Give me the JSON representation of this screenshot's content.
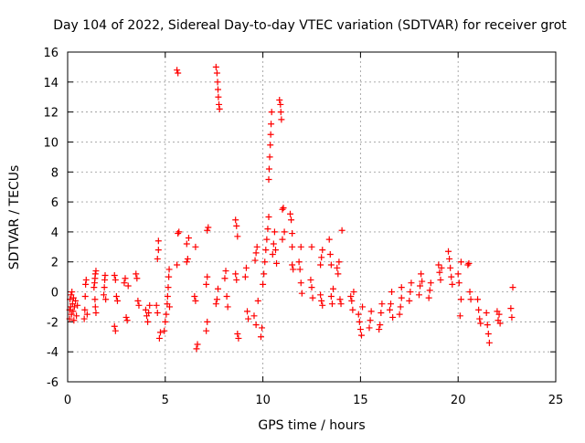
{
  "chart_data": {
    "type": "scatter",
    "title": "Day 104 of 2022, Sidereal Day-to-day VTEC variation (SDTVAR) for receiver grot",
    "xlabel": "GPS time / hours",
    "ylabel": "SDTVAR / TECUs",
    "xlim": [
      0,
      25
    ],
    "ylim": [
      -6,
      16
    ],
    "xticks": [
      0,
      5,
      10,
      15,
      20,
      25
    ],
    "yticks": [
      -6,
      -4,
      -2,
      0,
      2,
      4,
      6,
      8,
      10,
      12,
      14,
      16
    ],
    "xtick_labels": [
      "0",
      "5",
      "10",
      "15",
      "20",
      "25"
    ],
    "ytick_labels": [
      "-6",
      "-4",
      "-2",
      "0",
      "2",
      "4",
      "6",
      "8",
      "10",
      "12",
      "14",
      "16"
    ],
    "grid": true,
    "marker": "plus",
    "color": "#ff0000",
    "series": [
      {
        "name": "SDTVAR",
        "points": [
          [
            0.1,
            -1.8
          ],
          [
            0.1,
            -1.2
          ],
          [
            0.12,
            -0.5
          ],
          [
            0.15,
            -1.0
          ],
          [
            0.18,
            -0.2
          ],
          [
            0.2,
            -1.5
          ],
          [
            0.22,
            0.0
          ],
          [
            0.25,
            -0.8
          ],
          [
            0.28,
            -1.3
          ],
          [
            0.3,
            -0.4
          ],
          [
            0.32,
            -1.9
          ],
          [
            0.35,
            -1.0
          ],
          [
            0.4,
            -0.6
          ],
          [
            0.45,
            -1.6
          ],
          [
            0.5,
            -0.9
          ],
          [
            0.85,
            -1.8
          ],
          [
            0.88,
            -1.2
          ],
          [
            0.9,
            -0.3
          ],
          [
            0.92,
            0.5
          ],
          [
            0.95,
            0.8
          ],
          [
            1.0,
            -1.5
          ],
          [
            1.35,
            0.3
          ],
          [
            1.38,
            0.6
          ],
          [
            1.4,
            0.9
          ],
          [
            1.42,
            1.2
          ],
          [
            1.45,
            1.4
          ],
          [
            1.4,
            -0.5
          ],
          [
            1.42,
            -1.0
          ],
          [
            1.45,
            -1.4
          ],
          [
            1.85,
            -0.2
          ],
          [
            1.88,
            0.3
          ],
          [
            1.9,
            0.8
          ],
          [
            1.92,
            1.1
          ],
          [
            1.95,
            -0.5
          ],
          [
            2.4,
            1.1
          ],
          [
            2.45,
            0.8
          ],
          [
            2.4,
            -2.3
          ],
          [
            2.45,
            -2.6
          ],
          [
            2.5,
            -0.3
          ],
          [
            2.55,
            -0.6
          ],
          [
            2.9,
            0.6
          ],
          [
            2.95,
            0.9
          ],
          [
            3.0,
            -1.7
          ],
          [
            3.05,
            -1.9
          ],
          [
            3.1,
            0.4
          ],
          [
            3.5,
            1.2
          ],
          [
            3.55,
            0.9
          ],
          [
            3.6,
            -0.6
          ],
          [
            3.65,
            -0.9
          ],
          [
            4.0,
            -1.2
          ],
          [
            4.05,
            -1.6
          ],
          [
            4.1,
            -2.0
          ],
          [
            4.15,
            -1.4
          ],
          [
            4.2,
            -0.9
          ],
          [
            4.55,
            -0.9
          ],
          [
            4.6,
            -1.4
          ],
          [
            4.6,
            2.2
          ],
          [
            4.65,
            2.8
          ],
          [
            4.65,
            3.4
          ],
          [
            4.7,
            -3.1
          ],
          [
            4.75,
            -2.7
          ],
          [
            4.95,
            -2.6
          ],
          [
            5.0,
            -2.0
          ],
          [
            5.05,
            -1.5
          ],
          [
            5.1,
            -0.8
          ],
          [
            5.12,
            -0.3
          ],
          [
            5.15,
            0.3
          ],
          [
            5.18,
            1.0
          ],
          [
            5.2,
            1.5
          ],
          [
            5.22,
            -1.0
          ],
          [
            5.6,
            14.8
          ],
          [
            5.65,
            14.6
          ],
          [
            5.6,
            1.8
          ],
          [
            5.65,
            3.9
          ],
          [
            5.7,
            4.0
          ],
          [
            6.1,
            2.0
          ],
          [
            6.15,
            2.2
          ],
          [
            6.1,
            3.2
          ],
          [
            6.2,
            3.6
          ],
          [
            6.5,
            -0.3
          ],
          [
            6.55,
            -0.6
          ],
          [
            6.55,
            3.0
          ],
          [
            6.6,
            -3.8
          ],
          [
            6.65,
            -3.5
          ],
          [
            7.1,
            -2.6
          ],
          [
            7.15,
            -2.0
          ],
          [
            7.1,
            0.5
          ],
          [
            7.15,
            1.0
          ],
          [
            7.15,
            4.1
          ],
          [
            7.2,
            4.3
          ],
          [
            7.6,
            15.0
          ],
          [
            7.65,
            14.6
          ],
          [
            7.68,
            14.0
          ],
          [
            7.7,
            13.5
          ],
          [
            7.72,
            13.0
          ],
          [
            7.75,
            12.5
          ],
          [
            7.78,
            12.2
          ],
          [
            7.6,
            -0.8
          ],
          [
            7.65,
            -0.5
          ],
          [
            7.7,
            0.2
          ],
          [
            8.05,
            0.9
          ],
          [
            8.1,
            1.4
          ],
          [
            8.15,
            -0.3
          ],
          [
            8.2,
            -1.0
          ],
          [
            8.6,
            4.8
          ],
          [
            8.65,
            4.4
          ],
          [
            8.7,
            3.7
          ],
          [
            8.6,
            1.2
          ],
          [
            8.65,
            0.8
          ],
          [
            8.7,
            -2.8
          ],
          [
            8.75,
            -3.1
          ],
          [
            9.1,
            1.0
          ],
          [
            9.15,
            1.6
          ],
          [
            9.2,
            -1.3
          ],
          [
            9.25,
            -1.8
          ],
          [
            9.6,
            2.1
          ],
          [
            9.65,
            2.6
          ],
          [
            9.7,
            3.0
          ],
          [
            9.55,
            -1.6
          ],
          [
            9.65,
            -2.2
          ],
          [
            9.75,
            -0.6
          ],
          [
            9.9,
            -3.0
          ],
          [
            9.95,
            -2.4
          ],
          [
            10.0,
            0.5
          ],
          [
            10.05,
            1.2
          ],
          [
            10.1,
            2.0
          ],
          [
            10.15,
            2.8
          ],
          [
            10.2,
            3.5
          ],
          [
            10.25,
            4.2
          ],
          [
            10.3,
            5.0
          ],
          [
            10.3,
            7.5
          ],
          [
            10.32,
            8.2
          ],
          [
            10.35,
            9.0
          ],
          [
            10.38,
            9.8
          ],
          [
            10.4,
            10.5
          ],
          [
            10.42,
            11.2
          ],
          [
            10.45,
            12.0
          ],
          [
            10.5,
            2.5
          ],
          [
            10.55,
            3.2
          ],
          [
            10.6,
            4.0
          ],
          [
            10.65,
            2.8
          ],
          [
            10.7,
            1.9
          ],
          [
            10.85,
            12.8
          ],
          [
            10.9,
            12.5
          ],
          [
            10.92,
            12.0
          ],
          [
            10.95,
            11.5
          ],
          [
            11.0,
            3.5
          ],
          [
            11.0,
            5.5
          ],
          [
            11.05,
            5.6
          ],
          [
            11.1,
            4.0
          ],
          [
            11.4,
            5.2
          ],
          [
            11.45,
            4.8
          ],
          [
            11.5,
            3.9
          ],
          [
            11.5,
            1.8
          ],
          [
            11.55,
            1.5
          ],
          [
            11.5,
            3.0
          ],
          [
            11.85,
            2.0
          ],
          [
            11.9,
            1.5
          ],
          [
            11.95,
            0.6
          ],
          [
            11.95,
            3.0
          ],
          [
            12.0,
            -0.1
          ],
          [
            12.45,
            0.8
          ],
          [
            12.5,
            0.3
          ],
          [
            12.5,
            3.0
          ],
          [
            12.55,
            -0.4
          ],
          [
            12.95,
            1.8
          ],
          [
            13.0,
            2.3
          ],
          [
            13.05,
            2.8
          ],
          [
            12.95,
            -0.2
          ],
          [
            13.0,
            -0.6
          ],
          [
            13.05,
            -0.9
          ],
          [
            13.4,
            3.5
          ],
          [
            13.45,
            2.5
          ],
          [
            13.5,
            1.8
          ],
          [
            13.5,
            -0.3
          ],
          [
            13.55,
            -0.8
          ],
          [
            13.6,
            0.2
          ],
          [
            13.8,
            1.6
          ],
          [
            13.85,
            1.2
          ],
          [
            13.9,
            2.0
          ],
          [
            13.95,
            -0.5
          ],
          [
            14.0,
            -0.8
          ],
          [
            14.05,
            4.1
          ],
          [
            14.5,
            -0.3
          ],
          [
            14.55,
            -0.6
          ],
          [
            14.6,
            -1.2
          ],
          [
            14.65,
            0.0
          ],
          [
            14.9,
            -1.5
          ],
          [
            14.95,
            -2.0
          ],
          [
            15.0,
            -2.5
          ],
          [
            15.05,
            -2.9
          ],
          [
            15.1,
            -1.0
          ],
          [
            15.45,
            -2.4
          ],
          [
            15.5,
            -1.9
          ],
          [
            15.55,
            -1.3
          ],
          [
            15.95,
            -2.5
          ],
          [
            16.0,
            -2.2
          ],
          [
            16.05,
            -1.4
          ],
          [
            16.1,
            -0.8
          ],
          [
            16.5,
            -1.2
          ],
          [
            16.55,
            -0.8
          ],
          [
            16.6,
            0.0
          ],
          [
            16.65,
            -1.7
          ],
          [
            17.0,
            -1.5
          ],
          [
            17.05,
            -1.0
          ],
          [
            17.1,
            -0.4
          ],
          [
            17.1,
            0.3
          ],
          [
            17.5,
            -0.6
          ],
          [
            17.55,
            0.0
          ],
          [
            17.6,
            0.6
          ],
          [
            18.0,
            -0.2
          ],
          [
            18.05,
            0.4
          ],
          [
            18.1,
            1.2
          ],
          [
            18.15,
            0.7
          ],
          [
            18.5,
            -0.4
          ],
          [
            18.55,
            0.1
          ],
          [
            18.6,
            0.6
          ],
          [
            19.0,
            1.8
          ],
          [
            19.05,
            1.3
          ],
          [
            19.1,
            0.8
          ],
          [
            19.15,
            1.6
          ],
          [
            19.5,
            2.7
          ],
          [
            19.55,
            2.2
          ],
          [
            19.6,
            1.6
          ],
          [
            19.65,
            1.0
          ],
          [
            19.7,
            0.5
          ],
          [
            20.0,
            1.2
          ],
          [
            20.05,
            0.6
          ],
          [
            20.1,
            -1.6
          ],
          [
            20.15,
            -0.5
          ],
          [
            20.15,
            2.0
          ],
          [
            20.5,
            1.8
          ],
          [
            20.55,
            1.9
          ],
          [
            20.6,
            0.0
          ],
          [
            20.65,
            -0.5
          ],
          [
            21.0,
            -0.5
          ],
          [
            21.05,
            -1.2
          ],
          [
            21.1,
            -1.8
          ],
          [
            21.15,
            -2.1
          ],
          [
            21.45,
            -1.4
          ],
          [
            21.5,
            -2.2
          ],
          [
            21.55,
            -2.8
          ],
          [
            21.6,
            -3.4
          ],
          [
            22.0,
            -1.3
          ],
          [
            22.05,
            -1.9
          ],
          [
            22.1,
            -1.5
          ],
          [
            22.15,
            -2.1
          ],
          [
            22.7,
            -1.1
          ],
          [
            22.75,
            -1.7
          ],
          [
            22.8,
            0.3
          ]
        ]
      }
    ]
  }
}
